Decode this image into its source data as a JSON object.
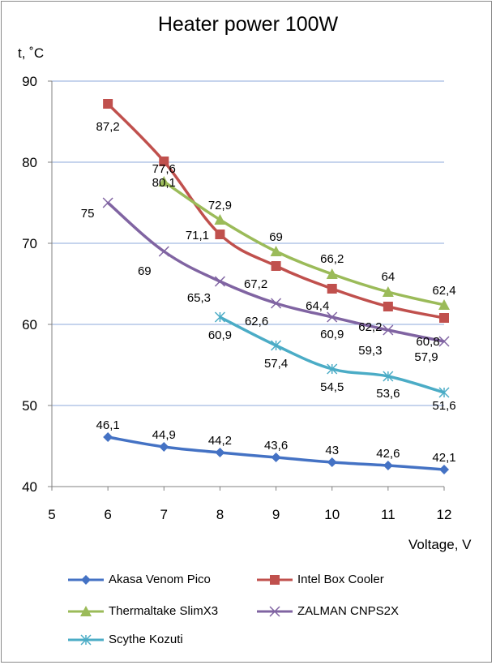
{
  "chart_data": {
    "type": "line",
    "title": "Heater power 100W",
    "ylabel": "t, ˚C",
    "xlabel": "Voltage, V",
    "xlim": [
      5,
      12
    ],
    "ylim": [
      40,
      90
    ],
    "x_ticks": [
      "5",
      "6",
      "7",
      "8",
      "9",
      "10",
      "11",
      "12"
    ],
    "y_ticks": [
      "40",
      "50",
      "60",
      "70",
      "80",
      "90"
    ],
    "grid": "horizontal",
    "legend_position": "bottom",
    "series": [
      {
        "name": "Akasa Venom Pico",
        "color": "#4472C4",
        "marker": "diamond",
        "x": [
          6,
          7,
          8,
          9,
          10,
          11,
          12
        ],
        "values": [
          46.1,
          44.9,
          44.2,
          43.6,
          43,
          42.6,
          42.1
        ],
        "labels": [
          "46,1",
          "44,9",
          "44,2",
          "43,6",
          "43",
          "42,6",
          "42,1"
        ]
      },
      {
        "name": "Intel Box Cooler",
        "color": "#C0504D",
        "marker": "square",
        "x": [
          6,
          7,
          8,
          9,
          10,
          11,
          12
        ],
        "values": [
          87.2,
          80.1,
          71.1,
          67.2,
          64.4,
          62.2,
          60.8
        ],
        "labels": [
          "87,2",
          "80,1",
          "71,1",
          "67,2",
          "64,4",
          "62,2",
          "60,8"
        ]
      },
      {
        "name": "Thermaltake SlimX3",
        "color": "#9BBB59",
        "marker": "triangle",
        "x": [
          7,
          8,
          9,
          10,
          11,
          12
        ],
        "values": [
          77.6,
          72.9,
          69,
          66.2,
          64,
          62.4
        ],
        "labels": [
          "77,6",
          "72,9",
          "69",
          "66,2",
          "64",
          "62,4"
        ]
      },
      {
        "name": "ZALMAN CNPS2X",
        "color": "#8064A2",
        "marker": "x",
        "x": [
          6,
          7,
          8,
          9,
          10,
          11,
          12
        ],
        "values": [
          75,
          69,
          65.3,
          62.6,
          60.9,
          59.3,
          57.9
        ],
        "labels": [
          "75",
          "69",
          "65,3",
          "62,6",
          "60,9",
          "59,3",
          "57,9"
        ]
      },
      {
        "name": "Scythe Kozuti",
        "color": "#4BACC6",
        "marker": "star",
        "x": [
          8,
          9,
          10,
          11,
          12
        ],
        "values": [
          60.9,
          57.4,
          54.5,
          53.6,
          51.6
        ],
        "labels": [
          "60,9",
          "57,4",
          "54,5",
          "53,6",
          "51,6"
        ]
      }
    ]
  }
}
